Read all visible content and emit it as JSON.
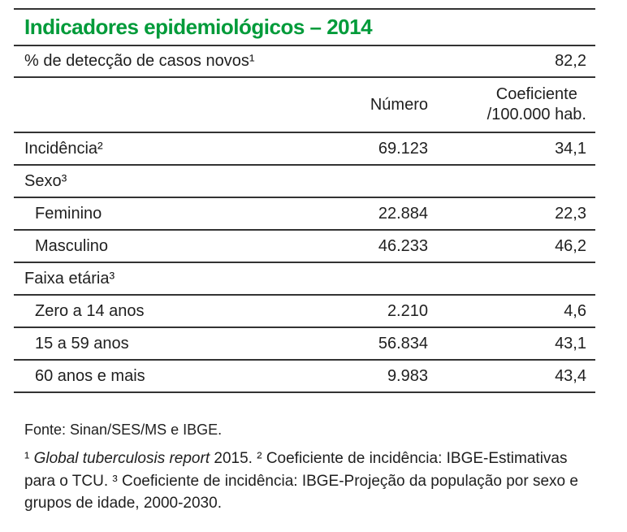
{
  "colors": {
    "accent_green": "#009B3A",
    "rule_color": "#333333",
    "text_color": "#1f1f1f",
    "background": "#ffffff"
  },
  "title": "Indicadores epidemiológicos – 2014",
  "detection": {
    "label": "% de detecção de casos novos¹",
    "value": "82,2"
  },
  "columns": {
    "numero": "Número",
    "coef_line1": "Coeficiente",
    "coef_line2": "/100.000 hab."
  },
  "rows": [
    {
      "label": "Incidência²",
      "numero": "69.123",
      "coef": "34,1",
      "kind": "data",
      "indent": false
    },
    {
      "label": "Sexo³",
      "numero": "",
      "coef": "",
      "kind": "section",
      "indent": false
    },
    {
      "label": "Feminino",
      "numero": "22.884",
      "coef": "22,3",
      "kind": "data",
      "indent": true
    },
    {
      "label": "Masculino",
      "numero": "46.233",
      "coef": "46,2",
      "kind": "data",
      "indent": true
    },
    {
      "label": "Faixa etária³",
      "numero": "",
      "coef": "",
      "kind": "section",
      "indent": false
    },
    {
      "label": "Zero a 14 anos",
      "numero": "2.210",
      "coef": "4,6",
      "kind": "data",
      "indent": true
    },
    {
      "label": "15 a 59 anos",
      "numero": "56.834",
      "coef": "43,1",
      "kind": "data",
      "indent": true
    },
    {
      "label": "60 anos e mais",
      "numero": "9.983",
      "coef": "43,4",
      "kind": "data",
      "indent": true
    }
  ],
  "source": "Fonte: Sinan/SES/MS e IBGE.",
  "footnotes": {
    "segments": [
      {
        "text": "¹ ",
        "style": "normal"
      },
      {
        "text": "Global tuberculosis report",
        "style": "italic"
      },
      {
        "text": " 2015. ² Coeficiente de incidência: IBGE-Estimativas para o TCU. ³ Coeficiente de incidência: IBGE-Projeção da população por sexo e grupos de idade, 2000-2030.",
        "style": "normal"
      }
    ]
  }
}
